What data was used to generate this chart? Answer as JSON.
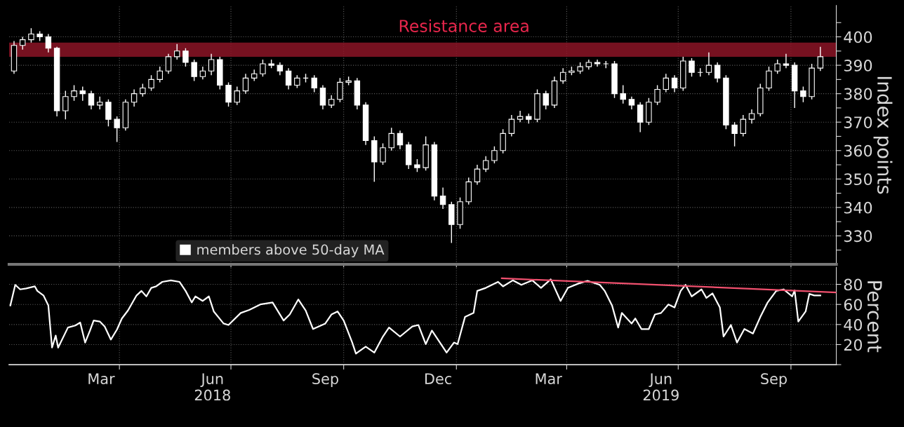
{
  "chart_data": [
    {
      "type": "candlestick",
      "ylabel": "Index points",
      "tick_labels": "y",
      "grid": true,
      "xlim": [
        "2018-01-01",
        "2019-11-07"
      ],
      "xticks": [
        {
          "value": "2018-04-01",
          "label": null
        },
        {
          "value": "2018-07-01",
          "label": null
        },
        {
          "value": "2018-10-01",
          "label": null
        },
        {
          "value": "2019-01-01",
          "label": null
        },
        {
          "value": "2019-04-01",
          "label": null
        },
        {
          "value": "2019-07-01",
          "label": null
        },
        {
          "value": "2019-10-01",
          "label": null
        }
      ],
      "ylim": [
        320,
        411
      ],
      "yticks": [
        {
          "value": 325,
          "label": null
        },
        330,
        {
          "value": 335,
          "label": null
        },
        340,
        {
          "value": 345,
          "label": null
        },
        350,
        {
          "value": 355,
          "label": null
        },
        360,
        {
          "value": 365,
          "label": null
        },
        370,
        {
          "value": 375,
          "label": null
        },
        380,
        {
          "value": 385,
          "label": null
        },
        390,
        {
          "value": 395,
          "label": null
        },
        400,
        {
          "value": 405,
          "label": null
        }
      ],
      "x": [
        "2018-01-05",
        "2018-01-12",
        "2018-01-19",
        "2018-01-26",
        "2018-02-02",
        "2018-02-09",
        "2018-02-16",
        "2018-02-23",
        "2018-03-02",
        "2018-03-09",
        "2018-03-16",
        "2018-03-23",
        "2018-03-30",
        "2018-04-06",
        "2018-04-13",
        "2018-04-20",
        "2018-04-27",
        "2018-05-04",
        "2018-05-11",
        "2018-05-18",
        "2018-05-25",
        "2018-06-01",
        "2018-06-08",
        "2018-06-15",
        "2018-06-22",
        "2018-06-29",
        "2018-07-06",
        "2018-07-13",
        "2018-07-20",
        "2018-07-27",
        "2018-08-03",
        "2018-08-10",
        "2018-08-17",
        "2018-08-24",
        "2018-08-31",
        "2018-09-07",
        "2018-09-14",
        "2018-09-21",
        "2018-09-28",
        "2018-10-05",
        "2018-10-12",
        "2018-10-19",
        "2018-10-26",
        "2018-11-02",
        "2018-11-09",
        "2018-11-16",
        "2018-11-23",
        "2018-11-30",
        "2018-12-07",
        "2018-12-14",
        "2018-12-21",
        "2018-12-28",
        "2019-01-04",
        "2019-01-11",
        "2019-01-18",
        "2019-01-25",
        "2019-02-01",
        "2019-02-08",
        "2019-02-15",
        "2019-02-22",
        "2019-03-01",
        "2019-03-08",
        "2019-03-15",
        "2019-03-22",
        "2019-03-29",
        "2019-04-05",
        "2019-04-12",
        "2019-04-19",
        "2019-04-26",
        "2019-05-03",
        "2019-05-10",
        "2019-05-17",
        "2019-05-24",
        "2019-05-31",
        "2019-06-07",
        "2019-06-14",
        "2019-06-21",
        "2019-06-28",
        "2019-07-05",
        "2019-07-12",
        "2019-07-19",
        "2019-07-26",
        "2019-08-02",
        "2019-08-09",
        "2019-08-16",
        "2019-08-23",
        "2019-08-30",
        "2019-09-06",
        "2019-09-13",
        "2019-09-20",
        "2019-09-27",
        "2019-10-04",
        "2019-10-11",
        "2019-10-18",
        "2019-10-25"
      ],
      "ohlc": [
        [
          388,
          398.5,
          387,
          397
        ],
        [
          397,
          400,
          395.5,
          399
        ],
        [
          399,
          403,
          398,
          401
        ],
        [
          401,
          402,
          398.5,
          400
        ],
        [
          400,
          401,
          394.5,
          396
        ],
        [
          396,
          396.5,
          372,
          374
        ],
        [
          374,
          381,
          371,
          379
        ],
        [
          379,
          383,
          377.5,
          381
        ],
        [
          381,
          382.5,
          377.5,
          380
        ],
        [
          380,
          381,
          374.5,
          376
        ],
        [
          376,
          379,
          374.5,
          377
        ],
        [
          377,
          378,
          368.5,
          371
        ],
        [
          371,
          372,
          363,
          368
        ],
        [
          368,
          378,
          367,
          377
        ],
        [
          377,
          381.5,
          375.5,
          380
        ],
        [
          380,
          383.5,
          379,
          382
        ],
        [
          382,
          386.5,
          381,
          385
        ],
        [
          385,
          389.5,
          384,
          388
        ],
        [
          388,
          394,
          387,
          393
        ],
        [
          393,
          397.5,
          392,
          395
        ],
        [
          395,
          396,
          389.5,
          391
        ],
        [
          391,
          392,
          384.5,
          386
        ],
        [
          386,
          389.5,
          385,
          388
        ],
        [
          388,
          394,
          386.5,
          392
        ],
        [
          392,
          393,
          381.5,
          383
        ],
        [
          383,
          384,
          375.5,
          377
        ],
        [
          377,
          382.5,
          376,
          381
        ],
        [
          381,
          387,
          380,
          385.5
        ],
        [
          385.5,
          388.5,
          384.5,
          387
        ],
        [
          387,
          392,
          386,
          390.5
        ],
        [
          390.5,
          392,
          389,
          390
        ],
        [
          390,
          391,
          386.5,
          388
        ],
        [
          388,
          389,
          381.5,
          383
        ],
        [
          383,
          386.5,
          382,
          385.5
        ],
        [
          385.5,
          387,
          384,
          385.5
        ],
        [
          385.5,
          386.5,
          380.5,
          382
        ],
        [
          382,
          383,
          374.5,
          376
        ],
        [
          376,
          379.5,
          375,
          378
        ],
        [
          378,
          385.5,
          377,
          384
        ],
        [
          384,
          386,
          383,
          384.5
        ],
        [
          384.5,
          385.5,
          374.5,
          376
        ],
        [
          376,
          377,
          362,
          363.5
        ],
        [
          363.5,
          365,
          349,
          356
        ],
        [
          356,
          362.5,
          355,
          361
        ],
        [
          361,
          368,
          360,
          366
        ],
        [
          366,
          367,
          360.5,
          362
        ],
        [
          362,
          363,
          353.5,
          355
        ],
        [
          355,
          357,
          352.5,
          354
        ],
        [
          354,
          365,
          353,
          362
        ],
        [
          362,
          363,
          342.5,
          344
        ],
        [
          344,
          347,
          339.5,
          341
        ],
        [
          341,
          342,
          327.5,
          334
        ],
        [
          334,
          343.5,
          332.5,
          342
        ],
        [
          342,
          350.5,
          341,
          349
        ],
        [
          349,
          355,
          348,
          353.5
        ],
        [
          353.5,
          358,
          352.5,
          356.5
        ],
        [
          356.5,
          361.5,
          355.5,
          360
        ],
        [
          360,
          367.5,
          359,
          366
        ],
        [
          366,
          372.5,
          365,
          371
        ],
        [
          371,
          374,
          370,
          372
        ],
        [
          372,
          373,
          369.5,
          371
        ],
        [
          371,
          381.5,
          370,
          380
        ],
        [
          380,
          381,
          374.5,
          376
        ],
        [
          376,
          386,
          375,
          384.5
        ],
        [
          384.5,
          389,
          383.5,
          387.5
        ],
        [
          387.5,
          389.5,
          386.5,
          388
        ],
        [
          388,
          391,
          387,
          389.5
        ],
        [
          389.5,
          392,
          388.5,
          391
        ],
        [
          391,
          392,
          389.5,
          390.5
        ],
        [
          390.5,
          391.5,
          389,
          390.5
        ],
        [
          390.5,
          391.5,
          378.5,
          380
        ],
        [
          380,
          383,
          376.5,
          378
        ],
        [
          378,
          379,
          374.5,
          376
        ],
        [
          376,
          377,
          366.5,
          370
        ],
        [
          370,
          378.5,
          369,
          377
        ],
        [
          377,
          383,
          376,
          381.5
        ],
        [
          381.5,
          387,
          380.5,
          385.5
        ],
        [
          385.5,
          386.5,
          380.5,
          382
        ],
        [
          382,
          393,
          381,
          391.5
        ],
        [
          391.5,
          392.5,
          386,
          387.5
        ],
        [
          387.5,
          389,
          386,
          387.5
        ],
        [
          387.5,
          394.5,
          386.5,
          390
        ],
        [
          390,
          391,
          384,
          385.5
        ],
        [
          385.5,
          386.5,
          367.5,
          369
        ],
        [
          369,
          370,
          361.5,
          366
        ],
        [
          366,
          372.5,
          365,
          371
        ],
        [
          371,
          374.5,
          369.5,
          373
        ],
        [
          373,
          383.5,
          372,
          382
        ],
        [
          382,
          389.5,
          381,
          388
        ],
        [
          388,
          392,
          387,
          390.5
        ],
        [
          390.5,
          394,
          389,
          390
        ],
        [
          390,
          391,
          375,
          381
        ],
        [
          381,
          382.5,
          377,
          379
        ],
        [
          379,
          390.5,
          378,
          389
        ],
        [
          389,
          396.5,
          388,
          393
        ]
      ],
      "bands": [
        {
          "axis": "y",
          "from": 393,
          "to": 398,
          "color": "#8b1426",
          "label": "Resistance area"
        }
      ]
    },
    {
      "type": "line",
      "ylabel": "Percent",
      "grid": true,
      "legend": "top",
      "xlim": [
        "2018-01-01",
        "2019-11-07"
      ],
      "xticks": [
        {
          "value": "2018-03-17",
          "label": "Mar"
        },
        {
          "value": "2018-04-01",
          "label": null
        },
        {
          "value": "2018-06-16",
          "label": "Jun\n2018"
        },
        {
          "value": "2018-07-01",
          "label": null
        },
        {
          "value": "2018-09-16",
          "label": "Sep"
        },
        {
          "value": "2018-10-01",
          "label": null
        },
        {
          "value": "2018-12-17",
          "label": "Dec"
        },
        {
          "value": "2019-01-01",
          "label": null
        },
        {
          "value": "2019-03-17",
          "label": "Mar"
        },
        {
          "value": "2019-04-01",
          "label": null
        },
        {
          "value": "2019-06-17",
          "label": "Jun\n2019"
        },
        {
          "value": "2019-07-01",
          "label": null
        },
        {
          "value": "2019-09-17",
          "label": "Sep"
        },
        {
          "value": "2019-10-01",
          "label": null
        }
      ],
      "ylim": [
        0,
        97
      ],
      "yticks": [
        {
          "value": 0,
          "label": null
        },
        20,
        40,
        60,
        80
      ],
      "series": [
        {
          "name": "members above 50-day MA",
          "color": "#ffffff",
          "x": [
            "2018-01-02",
            "2018-01-06",
            "2018-01-10",
            "2018-01-15",
            "2018-01-22",
            "2018-01-24",
            "2018-01-29",
            "2018-02-02",
            "2018-02-05",
            "2018-02-08",
            "2018-02-10",
            "2018-02-18",
            "2018-02-24",
            "2018-02-28",
            "2018-03-04",
            "2018-03-08",
            "2018-03-11",
            "2018-03-16",
            "2018-03-20",
            "2018-03-25",
            "2018-03-30",
            "2018-04-03",
            "2018-04-08",
            "2018-04-15",
            "2018-04-19",
            "2018-04-23",
            "2018-04-27",
            "2018-05-01",
            "2018-05-06",
            "2018-05-13",
            "2018-05-20",
            "2018-05-25",
            "2018-05-30",
            "2018-06-02",
            "2018-06-08",
            "2018-06-13",
            "2018-06-17",
            "2018-06-25",
            "2018-06-29",
            "2018-07-09",
            "2018-07-16",
            "2018-07-25",
            "2018-08-04",
            "2018-08-13",
            "2018-08-18",
            "2018-08-25",
            "2018-08-31",
            "2018-09-06",
            "2018-09-16",
            "2018-09-21",
            "2018-09-26",
            "2018-10-01",
            "2018-10-08",
            "2018-10-11",
            "2018-10-19",
            "2018-10-26",
            "2018-11-02",
            "2018-11-07",
            "2018-11-16",
            "2018-11-26",
            "2018-12-01",
            "2018-12-07",
            "2018-12-12",
            "2018-12-24",
            "2018-12-30",
            "2019-01-02",
            "2019-01-08",
            "2019-01-15",
            "2019-01-18",
            "2019-01-25",
            "2019-02-04",
            "2019-02-08",
            "2019-02-16",
            "2019-02-23",
            "2019-03-04",
            "2019-03-11",
            "2019-03-19",
            "2019-03-27",
            "2019-04-02",
            "2019-04-11",
            "2019-04-18",
            "2019-04-28",
            "2019-05-02",
            "2019-05-08",
            "2019-05-13",
            "2019-05-16",
            "2019-05-24",
            "2019-05-27",
            "2019-06-01",
            "2019-06-07",
            "2019-06-12",
            "2019-06-17",
            "2019-06-23",
            "2019-06-28",
            "2019-07-03",
            "2019-07-07",
            "2019-07-12",
            "2019-07-20",
            "2019-07-24",
            "2019-07-29",
            "2019-08-04",
            "2019-08-07",
            "2019-08-13",
            "2019-08-18",
            "2019-08-24",
            "2019-08-31",
            "2019-09-06",
            "2019-09-12",
            "2019-09-19",
            "2019-09-25",
            "2019-10-02",
            "2019-10-04",
            "2019-10-07",
            "2019-10-13",
            "2019-10-16",
            "2019-10-20",
            "2019-10-25"
          ],
          "values": [
            59,
            79.5,
            75,
            76,
            78,
            73.5,
            69,
            59,
            17,
            29,
            17,
            37,
            39,
            42,
            22,
            34,
            44,
            43,
            38,
            25,
            35,
            46,
            54,
            69,
            73.5,
            68,
            76.5,
            78,
            82.5,
            84,
            82.5,
            73.5,
            62,
            68,
            63.5,
            68,
            53,
            41,
            39.5,
            51.5,
            54.5,
            60,
            62,
            44,
            50,
            65,
            54,
            35.5,
            41,
            50,
            53,
            44,
            22,
            11,
            18,
            12,
            28,
            37,
            28,
            38,
            39.5,
            20.5,
            34,
            12,
            22,
            20.5,
            47.5,
            51.5,
            73.5,
            76.5,
            82.5,
            78,
            84,
            79.5,
            84,
            76.5,
            85,
            63.5,
            76.5,
            81,
            83.5,
            79.5,
            73.5,
            59,
            37,
            51.5,
            41,
            46,
            35.5,
            35.5,
            50,
            51.5,
            60,
            57,
            73.5,
            79.5,
            68,
            75,
            66.5,
            71,
            57,
            28,
            39.5,
            22,
            35.5,
            31,
            47.5,
            62,
            73.5,
            75,
            68,
            74,
            43,
            53,
            70.5,
            69,
            69
          ]
        },
        {
          "color": "#f0506e",
          "x": [
            "2019-02-07",
            "2019-11-07"
          ],
          "values": [
            86,
            72
          ]
        }
      ]
    }
  ]
}
